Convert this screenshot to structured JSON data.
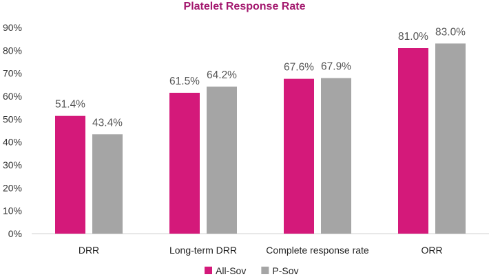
{
  "chart_data": {
    "type": "bar",
    "title": "Platelet Response Rate",
    "xlabel": "",
    "ylabel": "",
    "categories": [
      "DRR",
      "Long-term DRR",
      "Complete response rate",
      "ORR"
    ],
    "series": [
      {
        "name": "All-Sov",
        "values": [
          51.4,
          61.5,
          67.6,
          81.0
        ],
        "labels": [
          "51.4%",
          "61.5%",
          "67.6%",
          "81.0%"
        ],
        "color": "#D4197A"
      },
      {
        "name": "P-Sov",
        "values": [
          43.4,
          64.2,
          67.9,
          83.0
        ],
        "labels": [
          "43.4%",
          "64.2%",
          "67.9%",
          "83.0%"
        ],
        "color": "#A5A5A5"
      }
    ],
    "ylim": [
      0,
      90
    ],
    "yticks": [
      0,
      10,
      20,
      30,
      40,
      50,
      60,
      70,
      80,
      90
    ],
    "ytick_labels": [
      "0%",
      "10%",
      "20%",
      "30%",
      "40%",
      "50%",
      "60%",
      "70%",
      "80%",
      "90%"
    ],
    "grid": false,
    "legend_position": "bottom-center",
    "title_color": "#A3186E"
  }
}
